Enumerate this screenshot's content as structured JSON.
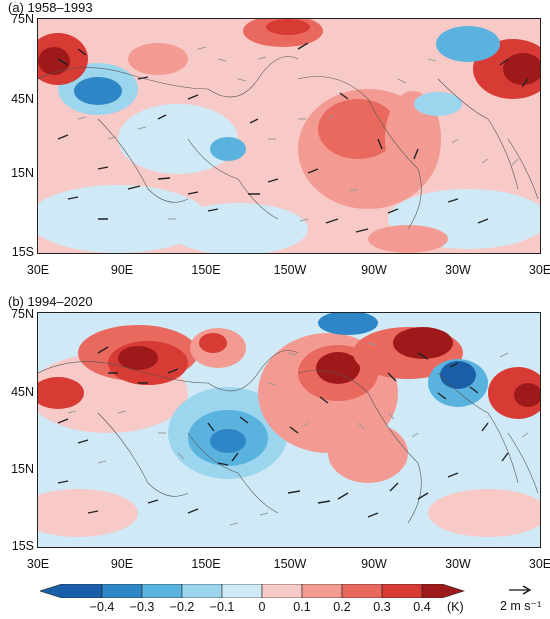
{
  "panels": [
    {
      "title": "(a)  1958–1993"
    },
    {
      "title": "(b)  1994–2020"
    }
  ],
  "lat_labels": [
    "75N",
    "45N",
    "15N",
    "15S"
  ],
  "lon_labels": [
    "30E",
    "90E",
    "150E",
    "150W",
    "90W",
    "30W",
    "30E"
  ],
  "colorbar": {
    "ticks": [
      "−0.4",
      "−0.3",
      "−0.2",
      "−0.1",
      "0",
      "0.1",
      "0.2",
      "0.3",
      "0.4"
    ],
    "unit": "(K)",
    "colors": [
      "#1a5fa8",
      "#2f86c6",
      "#5ab3de",
      "#9cd6ee",
      "#cfeaf6",
      "#f7c9c7",
      "#f39b92",
      "#e9695f",
      "#d83a34",
      "#9e1a1a"
    ]
  },
  "reference_vector": "2 m s⁻¹"
}
